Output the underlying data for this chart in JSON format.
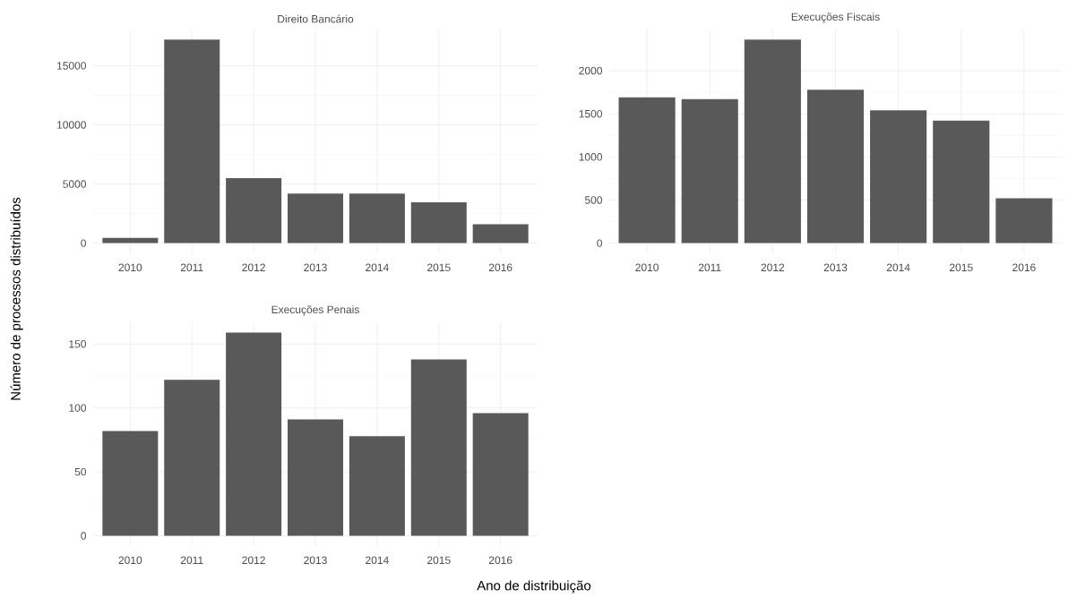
{
  "chart_data": [
    {
      "type": "bar",
      "title": "Direito Bancário",
      "categories": [
        "2010",
        "2011",
        "2012",
        "2013",
        "2014",
        "2015",
        "2016"
      ],
      "values": [
        450,
        17200,
        5500,
        4200,
        4200,
        3450,
        1600
      ],
      "color": "#595959",
      "ylim": [
        -860,
        18060
      ],
      "yticks": [
        0,
        5000,
        10000,
        15000
      ],
      "grid": true
    },
    {
      "type": "bar",
      "title": "Execuções Fiscais",
      "categories": [
        "2010",
        "2011",
        "2012",
        "2013",
        "2014",
        "2015",
        "2016"
      ],
      "values": [
        1690,
        1670,
        2360,
        1780,
        1540,
        1420,
        520
      ],
      "color": "#595959",
      "ylim": [
        -118,
        2478
      ],
      "yticks": [
        0,
        500,
        1000,
        1500,
        2000
      ],
      "grid": true
    },
    {
      "type": "bar",
      "title": "Execuções Penais",
      "xlabel": "Ano de distribuição",
      "ylabel": "Número de processos distribuídos",
      "categories": [
        "2010",
        "2011",
        "2012",
        "2013",
        "2014",
        "2015",
        "2016"
      ],
      "values": [
        82,
        122,
        159,
        91,
        78,
        138,
        96
      ],
      "color": "#595959",
      "ylim": [
        -8,
        167
      ],
      "yticks": [
        0,
        50,
        100,
        150
      ],
      "grid": true
    }
  ]
}
